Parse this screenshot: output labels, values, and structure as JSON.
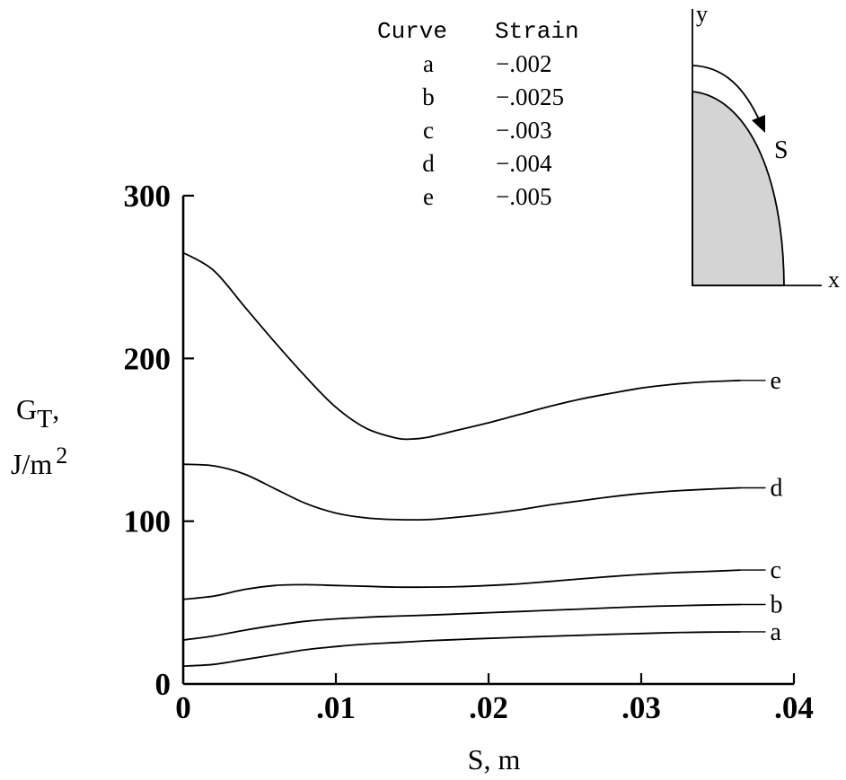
{
  "chart_data": {
    "type": "line",
    "x_label": "S, m",
    "y_label_main": "G",
    "y_label_sub": "T",
    "y_label_comma": ",",
    "y_label_unit": "J/m",
    "y_label_exp": "2",
    "xlim": [
      0,
      0.04
    ],
    "ylim": [
      0,
      300
    ],
    "x_ticks": [
      0,
      0.01,
      0.02,
      0.03,
      0.04
    ],
    "x_tick_labels": [
      "0",
      ".01",
      ".02",
      ".03",
      ".04"
    ],
    "y_ticks": [
      0,
      100,
      200,
      300
    ],
    "y_tick_labels": [
      "0",
      "100",
      "200",
      "300"
    ],
    "grid": false,
    "legend": {
      "header_curve": "Curve",
      "header_strain": "Strain",
      "rows": [
        {
          "curve": "a",
          "strain": "−.002"
        },
        {
          "curve": "b",
          "strain": "−.0025"
        },
        {
          "curve": "c",
          "strain": "−.003"
        },
        {
          "curve": "d",
          "strain": "−.004"
        },
        {
          "curve": "e",
          "strain": "−.005"
        }
      ]
    },
    "series": [
      {
        "name": "a",
        "x": [
          0,
          0.002,
          0.004,
          0.006,
          0.008,
          0.01,
          0.012,
          0.014,
          0.016,
          0.018,
          0.02,
          0.022,
          0.024,
          0.026,
          0.028,
          0.03,
          0.032,
          0.034,
          0.0365
        ],
        "y": [
          11,
          12,
          15,
          18,
          21,
          23,
          24.5,
          25.5,
          26.5,
          27.3,
          28,
          28.7,
          29.3,
          29.9,
          30.5,
          31,
          31.5,
          31.8,
          32
        ]
      },
      {
        "name": "b",
        "x": [
          0,
          0.002,
          0.004,
          0.006,
          0.008,
          0.01,
          0.012,
          0.014,
          0.016,
          0.018,
          0.02,
          0.022,
          0.024,
          0.026,
          0.028,
          0.03,
          0.032,
          0.034,
          0.0365
        ],
        "y": [
          27,
          29.5,
          33,
          36,
          38.5,
          40,
          41,
          41.7,
          42.3,
          43,
          43.8,
          44.5,
          45.3,
          46,
          46.8,
          47.5,
          48,
          48.4,
          48.8
        ]
      },
      {
        "name": "c",
        "x": [
          0,
          0.002,
          0.004,
          0.006,
          0.008,
          0.01,
          0.012,
          0.014,
          0.016,
          0.018,
          0.02,
          0.022,
          0.024,
          0.026,
          0.028,
          0.03,
          0.032,
          0.034,
          0.0365
        ],
        "y": [
          52,
          54,
          58,
          60.5,
          61,
          60.5,
          60,
          59.5,
          59.5,
          59.8,
          60.5,
          61.5,
          63,
          64.5,
          66,
          67.3,
          68.3,
          69,
          70
        ]
      },
      {
        "name": "d",
        "x": [
          0,
          0.002,
          0.004,
          0.006,
          0.008,
          0.01,
          0.012,
          0.014,
          0.016,
          0.018,
          0.02,
          0.022,
          0.024,
          0.026,
          0.028,
          0.03,
          0.032,
          0.034,
          0.0365
        ],
        "y": [
          135,
          134,
          129,
          120,
          111,
          105,
          102,
          101,
          101,
          102.5,
          104.5,
          107,
          110,
          112.5,
          115,
          117,
          118.5,
          119.5,
          120.5
        ]
      },
      {
        "name": "e",
        "x": [
          0,
          0.002,
          0.004,
          0.006,
          0.008,
          0.01,
          0.012,
          0.014,
          0.015,
          0.016,
          0.018,
          0.02,
          0.022,
          0.024,
          0.026,
          0.028,
          0.03,
          0.032,
          0.034,
          0.0365
        ],
        "y": [
          265,
          254,
          232,
          210,
          189,
          170,
          157,
          151,
          150.5,
          151.5,
          156,
          160.5,
          165.5,
          170.5,
          175,
          178.5,
          181.8,
          184,
          185.5,
          186.5
        ]
      }
    ],
    "inset": {
      "y_label": "y",
      "x_label": "x",
      "s_label": "S"
    }
  }
}
